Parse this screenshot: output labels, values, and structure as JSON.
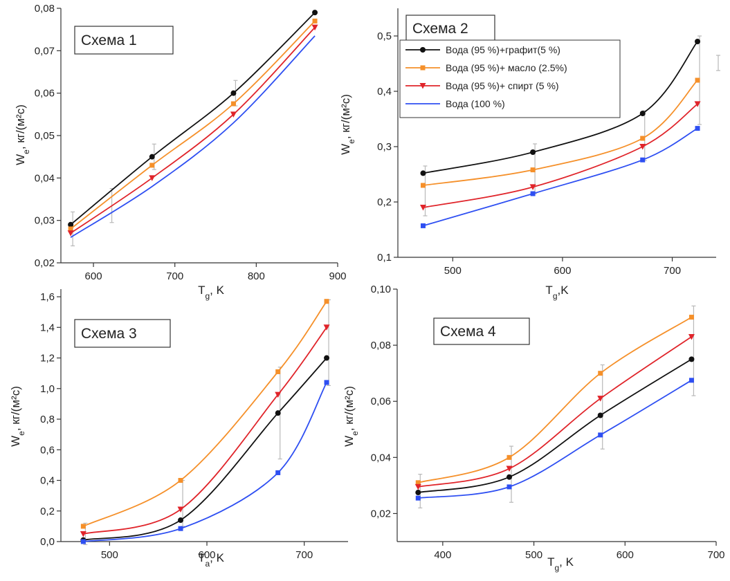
{
  "series_legend": [
    {
      "name": "Вода (95 %)+графит(5 %)",
      "color": "#111111",
      "marker": "circle"
    },
    {
      "name": "Вода (95 %)+ масло (2.5%)",
      "color": "#f5902a",
      "marker": "square"
    },
    {
      "name": "Вода (95 %)+ спирт (5 %)",
      "color": "#e0242a",
      "marker": "triangle-down"
    },
    {
      "name": "Вода (100 %)",
      "color": "#2e4ff2",
      "marker": "square"
    }
  ],
  "chart_data": [
    {
      "type": "line",
      "title": "Схема 1",
      "xlabel_main": "T",
      "xlabel_sub": "g",
      "xlabel_unit": ", K",
      "ylabel_main": "W",
      "ylabel_sub": "e",
      "ylabel_unit": ", кг/(м²с)",
      "xlim": [
        560,
        900
      ],
      "ylim": [
        0.02,
        0.08
      ],
      "xticks": [
        "600",
        "700",
        "800",
        "900"
      ],
      "yticks": [
        "0,02",
        "0,03",
        "0,04",
        "0,05",
        "0,06",
        "0,07",
        "0,08"
      ],
      "legend": "none",
      "x": [
        572,
        672,
        772,
        872
      ],
      "series": [
        {
          "name": "Вода (95 %)+графит(5 %)",
          "color": "#111111",
          "marker": "circle",
          "values": [
            0.029,
            0.045,
            0.06,
            0.079
          ]
        },
        {
          "name": "Вода (95 %)+ масло (2.5%)",
          "color": "#f5902a",
          "marker": "square",
          "values": [
            0.028,
            0.043,
            0.0575,
            0.077
          ]
        },
        {
          "name": "Вода (95 %)+ спирт (5 %)",
          "color": "#e0242a",
          "marker": "triangle-down",
          "values": [
            0.027,
            0.04,
            0.055,
            0.0755
          ]
        },
        {
          "name": "Вода (100 %)",
          "color": "#2e4ff2",
          "marker": "none",
          "values": [
            0.026,
            0.038,
            0.053,
            0.0735
          ]
        }
      ],
      "errors": [
        [
          572,
          0.028,
          0.004
        ],
        [
          672,
          0.045,
          0.003
        ],
        [
          772,
          0.06,
          0.003
        ],
        [
          620,
          0.0335,
          0.004
        ]
      ]
    },
    {
      "type": "line",
      "title": "Схема 2",
      "xlabel_main": "T",
      "xlabel_sub": "g",
      "xlabel_unit": ",K",
      "ylabel_main": "W",
      "ylabel_sub": "e",
      "ylabel_unit": ", кг/(м²с)",
      "xlim": [
        450,
        740
      ],
      "ylim": [
        0.1,
        0.55
      ],
      "xticks": [
        "500",
        "600",
        "700"
      ],
      "yticks": [
        "0,1",
        "0,2",
        "0,3",
        "0,4",
        "0,5"
      ],
      "legend": "top-left",
      "x": [
        473,
        573,
        673,
        723
      ],
      "series": [
        {
          "name": "Вода (95 %)+графит(5 %)",
          "color": "#111111",
          "marker": "circle",
          "values": [
            0.252,
            0.29,
            0.36,
            0.49
          ]
        },
        {
          "name": "Вода (95 %)+ масло (2.5%)",
          "color": "#f5902a",
          "marker": "square",
          "values": [
            0.23,
            0.258,
            0.315,
            0.42
          ]
        },
        {
          "name": "Вода (95 %)+ спирт (5 %)",
          "color": "#e0242a",
          "marker": "triangle-down",
          "values": [
            0.19,
            0.227,
            0.3,
            0.377
          ]
        },
        {
          "name": "Вода (100 %)",
          "color": "#2e4ff2",
          "marker": "square",
          "values": [
            0.157,
            0.215,
            0.276,
            0.333
          ]
        }
      ],
      "errors": [
        [
          473,
          0.22,
          0.045
        ],
        [
          573,
          0.26,
          0.045
        ],
        [
          673,
          0.32,
          0.045
        ],
        [
          723,
          0.42,
          0.08
        ]
      ]
    },
    {
      "type": "line",
      "title": "Схема 3",
      "xlabel_main": "T",
      "xlabel_sub": "a",
      "xlabel_unit": ", K",
      "ylabel_main": "W",
      "ylabel_sub": "e",
      "ylabel_unit": ", кг/(м²с)",
      "xlim": [
        450,
        745
      ],
      "ylim": [
        0.0,
        1.65
      ],
      "xticks": [
        "500",
        "600",
        "700"
      ],
      "yticks": [
        "0,0",
        "0,2",
        "0,4",
        "0,6",
        "0,8",
        "1,0",
        "1,2",
        "1,4",
        "1,6"
      ],
      "legend": "none",
      "x": [
        473,
        573,
        673,
        723
      ],
      "series": [
        {
          "name": "Вода (95 %)+графит(5 %)",
          "color": "#111111",
          "marker": "circle",
          "values": [
            0.01,
            0.14,
            0.84,
            1.2
          ]
        },
        {
          "name": "Вода (95 %)+ масло (2.5%)",
          "color": "#f5902a",
          "marker": "square",
          "values": [
            0.1,
            0.4,
            1.11,
            1.57
          ]
        },
        {
          "name": "Вода (95 %)+ спирт (5 %)",
          "color": "#e0242a",
          "marker": "triangle-down",
          "values": [
            0.05,
            0.21,
            0.96,
            1.4
          ]
        },
        {
          "name": "Вода (100 %)",
          "color": "#2e4ff2",
          "marker": "square",
          "values": [
            0.0,
            0.085,
            0.45,
            1.04
          ]
        }
      ],
      "errors": [
        [
          473,
          0.05,
          0.07
        ],
        [
          573,
          0.25,
          0.15
        ],
        [
          673,
          0.84,
          0.3
        ],
        [
          723,
          1.3,
          0.28
        ]
      ]
    },
    {
      "type": "line",
      "title": "Схема 4",
      "xlabel_main": "T",
      "xlabel_sub": "g",
      "xlabel_unit": ", K",
      "ylabel_main": "W",
      "ylabel_sub": "e",
      "ylabel_unit": ", кг/(м²с)",
      "xlim": [
        350,
        700
      ],
      "ylim": [
        0.01,
        0.1
      ],
      "xticks": [
        "400",
        "500",
        "600",
        "700"
      ],
      "yticks": [
        "0,02",
        "0,04",
        "0,06",
        "0,08",
        "0,10"
      ],
      "legend": "none",
      "x": [
        373,
        473,
        573,
        673
      ],
      "series": [
        {
          "name": "Вода (95 %)+графит(5 %)",
          "color": "#111111",
          "marker": "circle",
          "values": [
            0.0275,
            0.033,
            0.055,
            0.075
          ]
        },
        {
          "name": "Вода (95 %)+ масло (2.5%)",
          "color": "#f5902a",
          "marker": "square",
          "values": [
            0.031,
            0.04,
            0.07,
            0.09
          ]
        },
        {
          "name": "Вода (95 %)+ спирт (5 %)",
          "color": "#e0242a",
          "marker": "triangle-down",
          "values": [
            0.0295,
            0.036,
            0.061,
            0.083
          ]
        },
        {
          "name": "Вода (100 %)",
          "color": "#2e4ff2",
          "marker": "square",
          "values": [
            0.0255,
            0.0295,
            0.048,
            0.0675
          ]
        }
      ],
      "errors": [
        [
          373,
          0.028,
          0.006
        ],
        [
          473,
          0.034,
          0.01
        ],
        [
          573,
          0.058,
          0.015
        ],
        [
          673,
          0.078,
          0.016
        ]
      ]
    }
  ]
}
